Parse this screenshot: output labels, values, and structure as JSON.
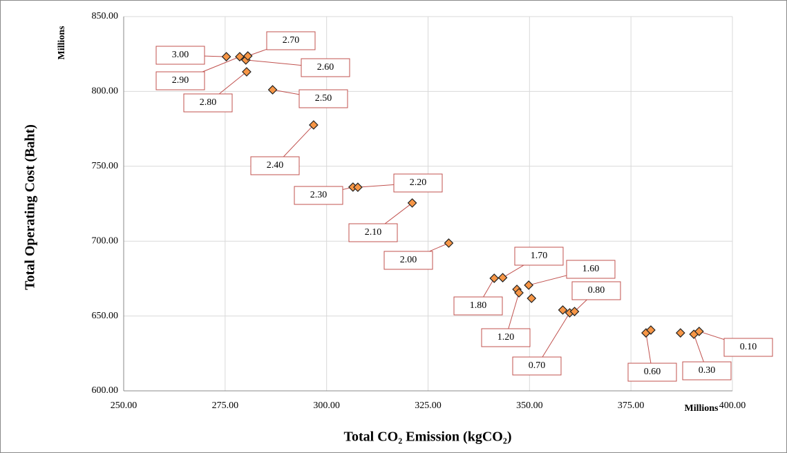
{
  "chart_data": {
    "type": "scatter",
    "x_label": "Total CO₂ Emission (kgCO₂)",
    "y_label": "Total Operating Cost (Baht)",
    "x_unit": "Millions",
    "y_unit": "Millions",
    "x": [
      275.3,
      278.6,
      280.1,
      280.6,
      280.3,
      286.7,
      296.8,
      306.5,
      307.7,
      321.1,
      330.1,
      341.3,
      343.4,
      346.9,
      347.4,
      349.8,
      350.5,
      358.2,
      359.9,
      361.1,
      378.7,
      379.9,
      387.2,
      390.5,
      391.8
    ],
    "y": [
      823.2,
      823.2,
      821.0,
      823.7,
      813.1,
      801.1,
      777.6,
      736.1,
      736.0,
      725.5,
      698.7,
      675.2,
      675.6,
      667.8,
      665.5,
      670.6,
      661.8,
      654.0,
      652.1,
      653.0,
      638.7,
      640.6,
      638.7,
      637.8,
      639.7
    ],
    "point_labels": [
      "3.00",
      "2.90",
      "2.60",
      "2.70",
      "2.80",
      "2.50",
      "2.40",
      "2.30",
      "2.20",
      "2.10",
      "2.00",
      "1.80",
      "1.70",
      null,
      "1.20",
      "1.60",
      null,
      null,
      "0.70",
      "0.80",
      "0.60",
      null,
      null,
      "0.30",
      "0.10"
    ],
    "color": "#f79646",
    "xlim": [
      250,
      400
    ],
    "xticks": [
      {
        "value": 250,
        "label": "250.00"
      },
      {
        "value": 275,
        "label": "275.00"
      },
      {
        "value": 300,
        "label": "300.00"
      },
      {
        "value": 325,
        "label": "325.00"
      },
      {
        "value": 350,
        "label": "350.00"
      },
      {
        "value": 375,
        "label": "375.00"
      },
      {
        "value": 400,
        "label": "400.00"
      }
    ],
    "ylim": [
      600,
      850
    ],
    "yticks": [
      {
        "value": 600,
        "label": "600.00"
      },
      {
        "value": 650,
        "label": "650.00"
      },
      {
        "value": 700,
        "label": "700.00"
      },
      {
        "value": 750,
        "label": "750.00"
      },
      {
        "value": 800,
        "label": "800.00"
      },
      {
        "value": 850,
        "label": "850.00"
      }
    ],
    "grid": true
  }
}
